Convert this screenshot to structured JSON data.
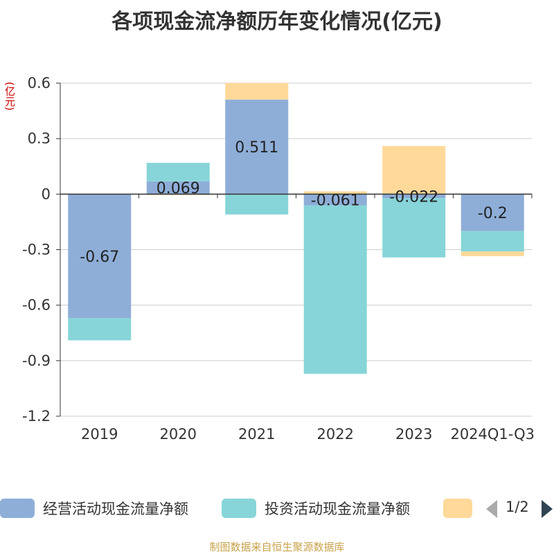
{
  "title": "各项现金流净额历年变化情况(亿元)",
  "unit_label": "(亿元)",
  "source": "制图数据来自恒生聚源数据库",
  "pager": {
    "text": "1/2"
  },
  "legend": [
    {
      "label": "经营活动现金流量净额",
      "color": "#8eaed8"
    },
    {
      "label": "投资活动现金流量净额",
      "color": "#87d5d8"
    },
    {
      "label": "",
      "color": "#ffd999"
    }
  ],
  "chart_data": {
    "type": "bar",
    "stacked": true,
    "title": "各项现金流净额历年变化情况(亿元)",
    "ylabel": "(亿元)",
    "ylim": [
      -1.2,
      0.6
    ],
    "yticks": [
      0.6,
      0.3,
      0,
      -0.3,
      -0.6,
      -0.9,
      -1.2
    ],
    "ytick_labels": [
      "0.6",
      "0.3",
      "0",
      "-0.3",
      "-0.6",
      "-0.9",
      "-1.2"
    ],
    "categories": [
      "2019",
      "2020",
      "2021",
      "2022",
      "2023",
      "2024Q1-Q3"
    ],
    "series": [
      {
        "name": "经营活动现金流量净额",
        "color": "#8eaed8",
        "values": [
          -0.67,
          0.069,
          0.511,
          -0.061,
          -0.022,
          -0.2
        ],
        "labels": [
          "-0.67",
          "0.069",
          "0.511",
          "-0.061",
          "-0.022",
          "-0.2"
        ]
      },
      {
        "name": "投资活动现金流量净额",
        "color": "#87d5d8",
        "values": [
          -0.12,
          0.1,
          -0.11,
          -0.91,
          -0.32,
          -0.11
        ]
      },
      {
        "name": "",
        "color": "#ffd999",
        "values": [
          0,
          -0.005,
          0.09,
          0.015,
          0.26,
          -0.025
        ]
      }
    ]
  }
}
